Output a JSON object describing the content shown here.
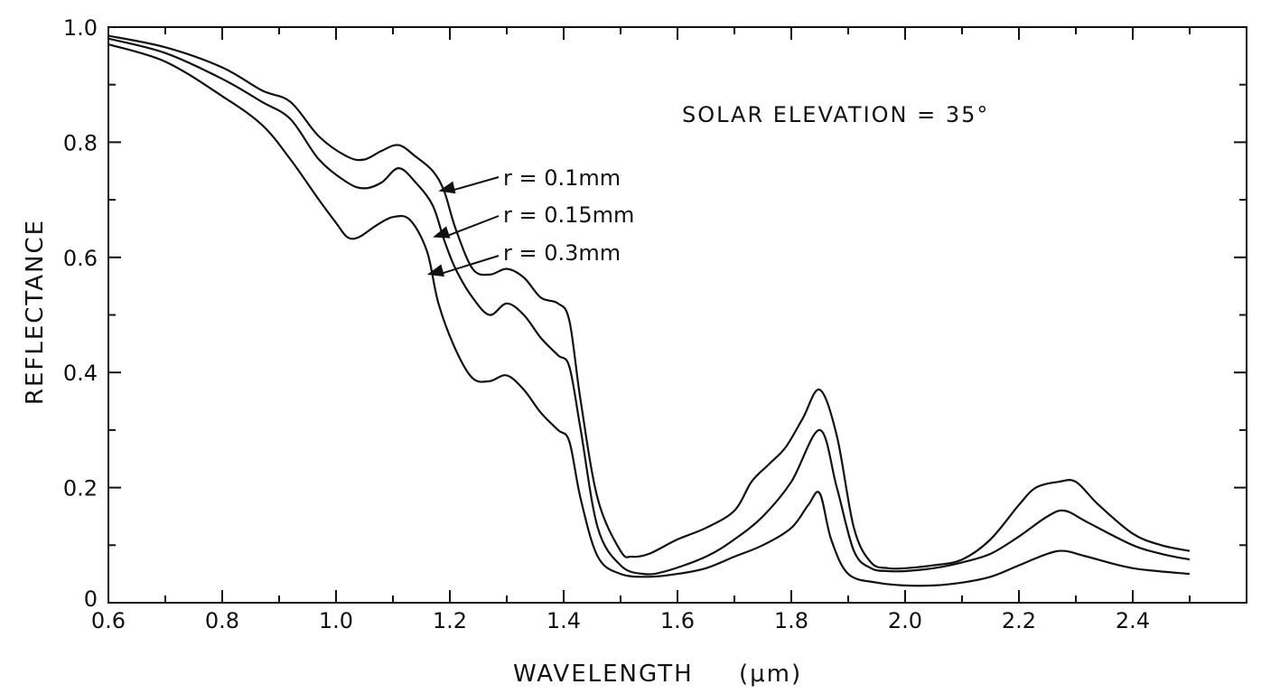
{
  "chart_data": {
    "type": "line",
    "title": "",
    "xlabel": "WAVELENGTH",
    "xlabel_unit": "(μm)",
    "ylabel": "REFLECTANCE",
    "xlim": [
      0.6,
      2.6
    ],
    "ylim": [
      0,
      1.0
    ],
    "x_ticks": [
      "0.6",
      "0.8",
      "1.0",
      "1.2",
      "1.4",
      "1.6",
      "1.8",
      "2.0",
      "2.2",
      "2.4"
    ],
    "y_ticks": [
      "0",
      "0.2",
      "0.4",
      "0.6",
      "0.8",
      "1.0"
    ],
    "grid": false,
    "annotation": "SOLAR ELEVATION = 35°",
    "series": [
      {
        "name": "r = 0.1mm",
        "points": [
          [
            0.6,
            0.985
          ],
          [
            0.7,
            0.965
          ],
          [
            0.8,
            0.93
          ],
          [
            0.87,
            0.89
          ],
          [
            0.92,
            0.87
          ],
          [
            0.97,
            0.81
          ],
          [
            1.02,
            0.775
          ],
          [
            1.05,
            0.77
          ],
          [
            1.08,
            0.785
          ],
          [
            1.11,
            0.795
          ],
          [
            1.14,
            0.775
          ],
          [
            1.17,
            0.75
          ],
          [
            1.19,
            0.715
          ],
          [
            1.21,
            0.65
          ],
          [
            1.24,
            0.58
          ],
          [
            1.27,
            0.57
          ],
          [
            1.3,
            0.58
          ],
          [
            1.33,
            0.565
          ],
          [
            1.36,
            0.53
          ],
          [
            1.39,
            0.52
          ],
          [
            1.41,
            0.49
          ],
          [
            1.43,
            0.35
          ],
          [
            1.46,
            0.18
          ],
          [
            1.5,
            0.09
          ],
          [
            1.52,
            0.08
          ],
          [
            1.55,
            0.085
          ],
          [
            1.6,
            0.11
          ],
          [
            1.65,
            0.13
          ],
          [
            1.7,
            0.16
          ],
          [
            1.73,
            0.21
          ],
          [
            1.76,
            0.24
          ],
          [
            1.79,
            0.27
          ],
          [
            1.82,
            0.32
          ],
          [
            1.85,
            0.37
          ],
          [
            1.88,
            0.29
          ],
          [
            1.91,
            0.13
          ],
          [
            1.94,
            0.07
          ],
          [
            1.97,
            0.06
          ],
          [
            2.0,
            0.06
          ],
          [
            2.05,
            0.065
          ],
          [
            2.1,
            0.075
          ],
          [
            2.15,
            0.11
          ],
          [
            2.2,
            0.17
          ],
          [
            2.23,
            0.2
          ],
          [
            2.27,
            0.21
          ],
          [
            2.3,
            0.21
          ],
          [
            2.34,
            0.17
          ],
          [
            2.4,
            0.12
          ],
          [
            2.45,
            0.1
          ],
          [
            2.5,
            0.09
          ]
        ]
      },
      {
        "name": "r = 0.15mm",
        "points": [
          [
            0.6,
            0.98
          ],
          [
            0.7,
            0.955
          ],
          [
            0.8,
            0.91
          ],
          [
            0.87,
            0.87
          ],
          [
            0.92,
            0.84
          ],
          [
            0.97,
            0.77
          ],
          [
            1.02,
            0.73
          ],
          [
            1.05,
            0.72
          ],
          [
            1.08,
            0.73
          ],
          [
            1.11,
            0.755
          ],
          [
            1.14,
            0.73
          ],
          [
            1.17,
            0.69
          ],
          [
            1.19,
            0.63
          ],
          [
            1.21,
            0.58
          ],
          [
            1.24,
            0.53
          ],
          [
            1.27,
            0.5
          ],
          [
            1.3,
            0.52
          ],
          [
            1.33,
            0.5
          ],
          [
            1.36,
            0.46
          ],
          [
            1.39,
            0.43
          ],
          [
            1.41,
            0.41
          ],
          [
            1.43,
            0.3
          ],
          [
            1.46,
            0.13
          ],
          [
            1.5,
            0.065
          ],
          [
            1.54,
            0.05
          ],
          [
            1.58,
            0.055
          ],
          [
            1.65,
            0.08
          ],
          [
            1.7,
            0.11
          ],
          [
            1.75,
            0.15
          ],
          [
            1.8,
            0.21
          ],
          [
            1.85,
            0.3
          ],
          [
            1.88,
            0.2
          ],
          [
            1.91,
            0.09
          ],
          [
            1.94,
            0.06
          ],
          [
            1.97,
            0.055
          ],
          [
            2.0,
            0.055
          ],
          [
            2.05,
            0.06
          ],
          [
            2.1,
            0.07
          ],
          [
            2.15,
            0.085
          ],
          [
            2.2,
            0.115
          ],
          [
            2.25,
            0.15
          ],
          [
            2.28,
            0.16
          ],
          [
            2.32,
            0.14
          ],
          [
            2.4,
            0.1
          ],
          [
            2.45,
            0.085
          ],
          [
            2.5,
            0.075
          ]
        ]
      },
      {
        "name": "r = 0.3mm",
        "points": [
          [
            0.6,
            0.97
          ],
          [
            0.7,
            0.94
          ],
          [
            0.8,
            0.88
          ],
          [
            0.87,
            0.83
          ],
          [
            0.92,
            0.77
          ],
          [
            0.97,
            0.7
          ],
          [
            1.0,
            0.66
          ],
          [
            1.02,
            0.635
          ],
          [
            1.04,
            0.635
          ],
          [
            1.07,
            0.655
          ],
          [
            1.1,
            0.67
          ],
          [
            1.13,
            0.665
          ],
          [
            1.16,
            0.61
          ],
          [
            1.18,
            0.52
          ],
          [
            1.21,
            0.44
          ],
          [
            1.24,
            0.39
          ],
          [
            1.27,
            0.385
          ],
          [
            1.3,
            0.395
          ],
          [
            1.33,
            0.37
          ],
          [
            1.36,
            0.33
          ],
          [
            1.39,
            0.3
          ],
          [
            1.41,
            0.28
          ],
          [
            1.43,
            0.18
          ],
          [
            1.46,
            0.08
          ],
          [
            1.5,
            0.05
          ],
          [
            1.55,
            0.045
          ],
          [
            1.6,
            0.05
          ],
          [
            1.65,
            0.06
          ],
          [
            1.7,
            0.08
          ],
          [
            1.75,
            0.1
          ],
          [
            1.8,
            0.13
          ],
          [
            1.83,
            0.17
          ],
          [
            1.85,
            0.19
          ],
          [
            1.87,
            0.11
          ],
          [
            1.9,
            0.05
          ],
          [
            1.95,
            0.035
          ],
          [
            2.0,
            0.03
          ],
          [
            2.05,
            0.03
          ],
          [
            2.1,
            0.035
          ],
          [
            2.15,
            0.045
          ],
          [
            2.2,
            0.065
          ],
          [
            2.25,
            0.085
          ],
          [
            2.28,
            0.09
          ],
          [
            2.32,
            0.08
          ],
          [
            2.4,
            0.06
          ],
          [
            2.5,
            0.05
          ]
        ]
      }
    ]
  }
}
